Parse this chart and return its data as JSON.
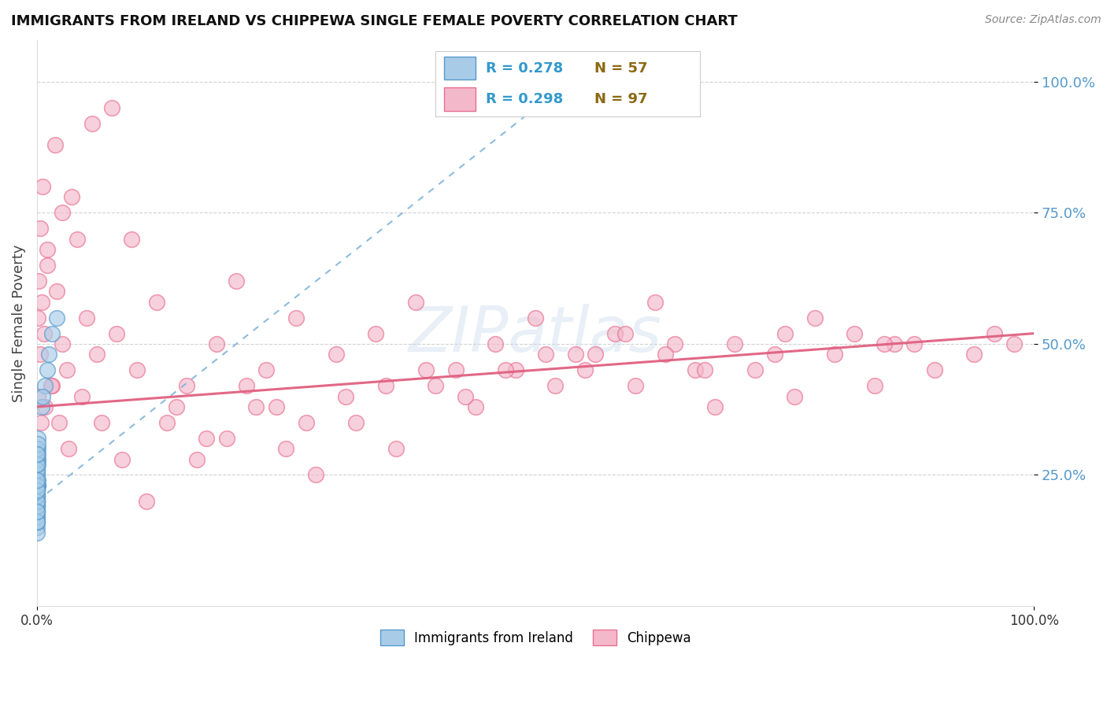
{
  "title": "IMMIGRANTS FROM IRELAND VS CHIPPEWA SINGLE FEMALE POVERTY CORRELATION CHART",
  "source": "Source: ZipAtlas.com",
  "ylabel": "Single Female Poverty",
  "y_tick_labels": [
    "25.0%",
    "50.0%",
    "75.0%",
    "100.0%"
  ],
  "y_tick_positions": [
    0.25,
    0.5,
    0.75,
    1.0
  ],
  "xlim": [
    0.0,
    1.0
  ],
  "ylim": [
    0.0,
    1.08
  ],
  "legend_r1": "R = 0.278",
  "legend_n1": "N = 57",
  "legend_r2": "R = 0.298",
  "legend_n2": "N = 97",
  "color_blue": "#a8cce8",
  "color_pink": "#f4b8cb",
  "color_blue_edge": "#5599cc",
  "color_pink_edge": "#e87090",
  "color_pink_line": "#e06080",
  "color_blue_line": "#7ab0d8",
  "watermark": "ZIPatlas",
  "grid_color": "#cccccc",
  "background_color": "#ffffff",
  "ytick_color": "#5599cc",
  "title_color": "#111111",
  "source_color": "#888888",
  "blue_scatter_x": [
    0.0002,
    0.0003,
    0.0001,
    0.0004,
    0.0002,
    0.0005,
    0.0003,
    0.0001,
    0.0006,
    0.0004,
    0.0002,
    0.0001,
    0.0007,
    0.0003,
    0.0002,
    0.0005,
    0.0001,
    0.0008,
    0.0002,
    0.0001,
    0.0003,
    0.0002,
    0.0004,
    0.0001,
    0.0009,
    0.0002,
    0.0001,
    0.0003,
    0.0005,
    0.0002,
    0.0001,
    0.0004,
    0.0002,
    0.0003,
    0.0001,
    0.0006,
    0.0002,
    0.0001,
    0.0003,
    0.0002,
    0.0004,
    0.0001,
    0.0002,
    0.0003,
    0.0001,
    0.0005,
    0.0002,
    0.0004,
    0.0001,
    0.0002,
    0.005,
    0.01,
    0.015,
    0.008,
    0.012,
    0.006,
    0.02
  ],
  "blue_scatter_y": [
    0.18,
    0.22,
    0.15,
    0.25,
    0.19,
    0.23,
    0.2,
    0.14,
    0.24,
    0.18,
    0.26,
    0.21,
    0.28,
    0.17,
    0.2,
    0.23,
    0.16,
    0.3,
    0.19,
    0.21,
    0.24,
    0.17,
    0.26,
    0.2,
    0.32,
    0.19,
    0.22,
    0.25,
    0.27,
    0.21,
    0.16,
    0.28,
    0.2,
    0.23,
    0.18,
    0.29,
    0.22,
    0.19,
    0.26,
    0.21,
    0.3,
    0.16,
    0.23,
    0.27,
    0.2,
    0.31,
    0.22,
    0.29,
    0.18,
    0.24,
    0.38,
    0.45,
    0.52,
    0.42,
    0.48,
    0.4,
    0.55
  ],
  "pink_scatter_x": [
    0.001,
    0.002,
    0.003,
    0.005,
    0.007,
    0.01,
    0.015,
    0.02,
    0.025,
    0.03,
    0.04,
    0.05,
    0.06,
    0.08,
    0.1,
    0.12,
    0.15,
    0.18,
    0.2,
    0.23,
    0.26,
    0.3,
    0.34,
    0.38,
    0.42,
    0.46,
    0.5,
    0.54,
    0.58,
    0.62,
    0.66,
    0.7,
    0.74,
    0.78,
    0.82,
    0.86,
    0.9,
    0.94,
    0.96,
    0.98,
    0.003,
    0.006,
    0.01,
    0.018,
    0.025,
    0.035,
    0.055,
    0.075,
    0.095,
    0.13,
    0.16,
    0.19,
    0.22,
    0.25,
    0.28,
    0.32,
    0.36,
    0.4,
    0.44,
    0.48,
    0.52,
    0.56,
    0.6,
    0.64,
    0.68,
    0.72,
    0.76,
    0.8,
    0.84,
    0.88,
    0.001,
    0.004,
    0.008,
    0.014,
    0.022,
    0.032,
    0.045,
    0.065,
    0.085,
    0.11,
    0.14,
    0.17,
    0.21,
    0.24,
    0.27,
    0.31,
    0.35,
    0.39,
    0.43,
    0.47,
    0.51,
    0.55,
    0.59,
    0.63,
    0.67,
    0.75,
    0.85
  ],
  "pink_scatter_y": [
    0.55,
    0.62,
    0.48,
    0.58,
    0.52,
    0.65,
    0.42,
    0.6,
    0.5,
    0.45,
    0.7,
    0.55,
    0.48,
    0.52,
    0.45,
    0.58,
    0.42,
    0.5,
    0.62,
    0.45,
    0.55,
    0.48,
    0.52,
    0.58,
    0.45,
    0.5,
    0.55,
    0.48,
    0.52,
    0.58,
    0.45,
    0.5,
    0.48,
    0.55,
    0.52,
    0.5,
    0.45,
    0.48,
    0.52,
    0.5,
    0.72,
    0.8,
    0.68,
    0.88,
    0.75,
    0.78,
    0.92,
    0.95,
    0.7,
    0.35,
    0.28,
    0.32,
    0.38,
    0.3,
    0.25,
    0.35,
    0.3,
    0.42,
    0.38,
    0.45,
    0.42,
    0.48,
    0.42,
    0.5,
    0.38,
    0.45,
    0.4,
    0.48,
    0.42,
    0.5,
    0.4,
    0.35,
    0.38,
    0.42,
    0.35,
    0.3,
    0.4,
    0.35,
    0.28,
    0.2,
    0.38,
    0.32,
    0.42,
    0.38,
    0.35,
    0.4,
    0.42,
    0.45,
    0.4,
    0.45,
    0.48,
    0.45,
    0.52,
    0.48,
    0.45,
    0.52,
    0.5
  ],
  "blue_trend_x": [
    0.0,
    0.5
  ],
  "blue_trend_y": [
    0.2,
    0.95
  ],
  "pink_trend_x": [
    0.0,
    1.0
  ],
  "pink_trend_y": [
    0.38,
    0.52
  ]
}
